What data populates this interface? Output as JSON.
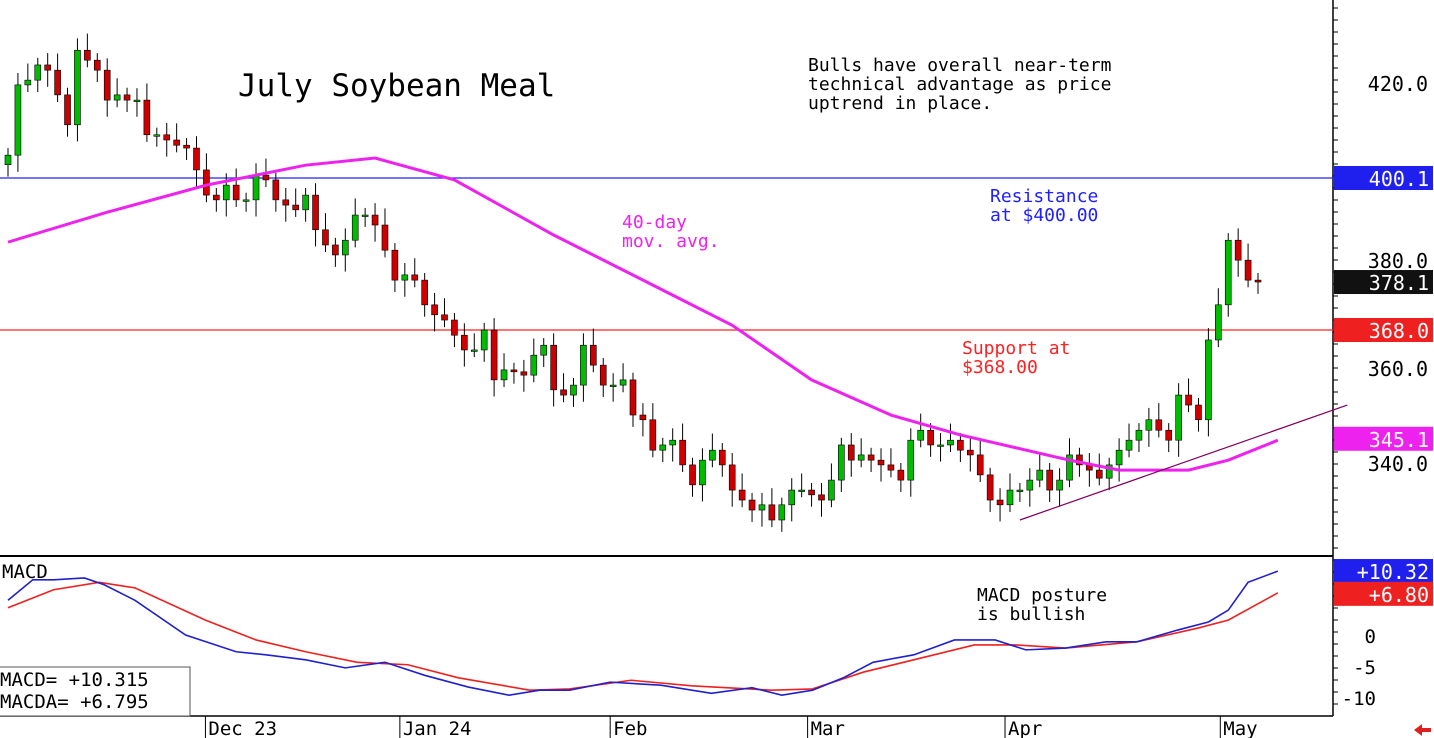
{
  "chart_data": {
    "type": "candlestick",
    "title": "July Soybean Meal",
    "commentary": [
      "Bulls have overall near-term",
      "technical advantage as price",
      "uptrend in place."
    ],
    "price_axis": {
      "ylim": [
        320.6,
        437.5
      ],
      "ticks": [
        340,
        360,
        380,
        420
      ],
      "tick_labels": [
        "340.0",
        "360.0",
        "380.0",
        "420.0"
      ]
    },
    "closes": [
      404.8,
      419.6,
      420.6,
      423.8,
      422.7,
      417.5,
      411.2,
      426.9,
      424.8,
      422.7,
      416.4,
      417.5,
      416.4,
      416.4,
      409.1,
      409.1,
      408.0,
      406.9,
      406.3,
      401.7,
      396.4,
      395.4,
      398.5,
      395.4,
      395.4,
      400.6,
      399.6,
      395.4,
      394.3,
      393.3,
      396.4,
      389.1,
      385.9,
      383.8,
      386.9,
      392.2,
      392.2,
      390.1,
      384.8,
      378.5,
      379.6,
      378.5,
      373.3,
      371.2,
      370.1,
      366.9,
      363.8,
      363.8,
      368.0,
      357.5,
      359.6,
      359.2,
      358.5,
      362.7,
      364.8,
      355.4,
      354.3,
      356.4,
      364.8,
      360.6,
      356.4,
      356.4,
      357.5,
      350.1,
      349.1,
      342.7,
      343.8,
      344.8,
      339.6,
      335.4,
      340.6,
      342.7,
      339.6,
      334.3,
      332.2,
      330.1,
      331.2,
      328.0,
      331.2,
      334.3,
      334.3,
      333.3,
      332.2,
      336.4,
      343.8,
      340.6,
      341.7,
      340.6,
      339.6,
      338.5,
      336.4,
      344.8,
      346.9,
      343.8,
      343.8,
      344.8,
      342.7,
      341.7,
      337.5,
      332.2,
      331.2,
      334.3,
      334.3,
      336.4,
      338.5,
      334.3,
      336.4,
      341.7,
      339.6,
      338.5,
      336.8,
      339.6,
      342.7,
      344.8,
      346.9,
      349.1,
      346.9,
      344.8,
      354.3,
      352.2,
      349.1,
      365.9,
      373.3,
      386.9,
      382.7,
      378.5,
      378.1
    ],
    "ma40": {
      "label": [
        "40-day",
        "mov. avg."
      ],
      "points": [
        [
          0,
          386.5
        ],
        [
          10,
          392.8
        ],
        [
          20,
          398.5
        ],
        [
          30,
          402.7
        ],
        [
          37,
          404.2
        ],
        [
          45,
          399.6
        ],
        [
          55,
          388
        ],
        [
          66,
          376.4
        ],
        [
          73,
          369
        ],
        [
          81,
          357.5
        ],
        [
          89,
          350.1
        ],
        [
          96,
          345.9
        ],
        [
          107,
          340.6
        ],
        [
          112,
          338.5
        ],
        [
          119,
          338.5
        ],
        [
          123,
          340.6
        ],
        [
          128,
          344.8
        ]
      ]
    },
    "resistance": {
      "value": 400.0,
      "label": [
        "Resistance",
        "at $400.00"
      ],
      "tag": "400.1"
    },
    "support": {
      "value": 368.0,
      "label": [
        "Support at",
        "$368.00"
      ],
      "tag": "368.0"
    },
    "last_tag": "378.1",
    "ma_tag": "345.1",
    "trendline": [
      [
        102,
        328
      ],
      [
        135,
        352.2
      ]
    ],
    "macd": {
      "title": "MACD",
      "ylim": [
        -13,
        13
      ],
      "ticks": [
        -10,
        -5,
        0
      ],
      "tick_labels": [
        "-10",
        "-5",
        "0"
      ],
      "macd_label": "MACD= +10.315",
      "macda_label": "MACDA= +6.795",
      "macd_tag": "+10.32",
      "macda_tag": "+6.80",
      "note": [
        "MACD posture",
        "is bullish"
      ],
      "macd": [
        [
          0,
          5.6
        ],
        [
          2.5,
          8.9
        ],
        [
          4.6,
          8.9
        ],
        [
          7.7,
          9.2
        ],
        [
          9.7,
          8.1
        ],
        [
          12.8,
          5.6
        ],
        [
          17.9,
          0
        ],
        [
          23,
          -2.7
        ],
        [
          26,
          -3.2
        ],
        [
          30,
          -4
        ],
        [
          34,
          -5.3
        ],
        [
          38,
          -4.4
        ],
        [
          42,
          -6.5
        ],
        [
          46.4,
          -8.4
        ],
        [
          50.5,
          -9.7
        ],
        [
          53.6,
          -8.9
        ],
        [
          56.6,
          -8.9
        ],
        [
          60.7,
          -7.6
        ],
        [
          65.8,
          -8.1
        ],
        [
          70.9,
          -9.4
        ],
        [
          75,
          -8.5
        ],
        [
          78,
          -9.7
        ],
        [
          81.1,
          -8.9
        ],
        [
          84.2,
          -6.9
        ],
        [
          87.2,
          -4.4
        ],
        [
          91.3,
          -3.2
        ],
        [
          95.4,
          -0.8
        ],
        [
          99.5,
          -0.8
        ],
        [
          102.6,
          -2.4
        ],
        [
          106.6,
          -2.1
        ],
        [
          110.7,
          -1.1
        ],
        [
          113.8,
          -1.1
        ],
        [
          117.9,
          0.8
        ],
        [
          121,
          2.1
        ],
        [
          123,
          4
        ],
        [
          125,
          8.5
        ],
        [
          128,
          10.3
        ]
      ],
      "signal": [
        [
          0,
          4.4
        ],
        [
          4.6,
          7.3
        ],
        [
          9.2,
          8.5
        ],
        [
          12.8,
          7.6
        ],
        [
          19.9,
          2.4
        ],
        [
          25,
          -0.8
        ],
        [
          30,
          -2.7
        ],
        [
          35.2,
          -4.4
        ],
        [
          40.3,
          -4.8
        ],
        [
          45.4,
          -6.9
        ],
        [
          52.6,
          -8.9
        ],
        [
          56.6,
          -8.7
        ],
        [
          62.8,
          -7.3
        ],
        [
          68.9,
          -8.2
        ],
        [
          77,
          -8.9
        ],
        [
          81.1,
          -8.7
        ],
        [
          86.2,
          -6
        ],
        [
          91.3,
          -4
        ],
        [
          97.4,
          -1.6
        ],
        [
          101.5,
          -1.6
        ],
        [
          106.6,
          -2.1
        ],
        [
          113.8,
          -1.1
        ],
        [
          119.9,
          1.1
        ],
        [
          123,
          2.4
        ],
        [
          128,
          6.8
        ]
      ]
    },
    "months": [
      {
        "label": "Dec 23",
        "index": 19.9
      },
      {
        "label": "Jan 24",
        "index": 39.5
      },
      {
        "label": "Feb",
        "index": 60.7
      },
      {
        "label": "Mar",
        "index": 80.6
      },
      {
        "label": "Apr",
        "index": 100.5
      },
      {
        "label": "May",
        "index": 122.2
      }
    ],
    "colors": {
      "up": "#00bb00",
      "down": "#cc0000",
      "ma": "#ee22ee",
      "resistance": "#2020ff",
      "support": "#ff2020",
      "macd": "#2020cc",
      "signal": "#ee2020"
    }
  }
}
